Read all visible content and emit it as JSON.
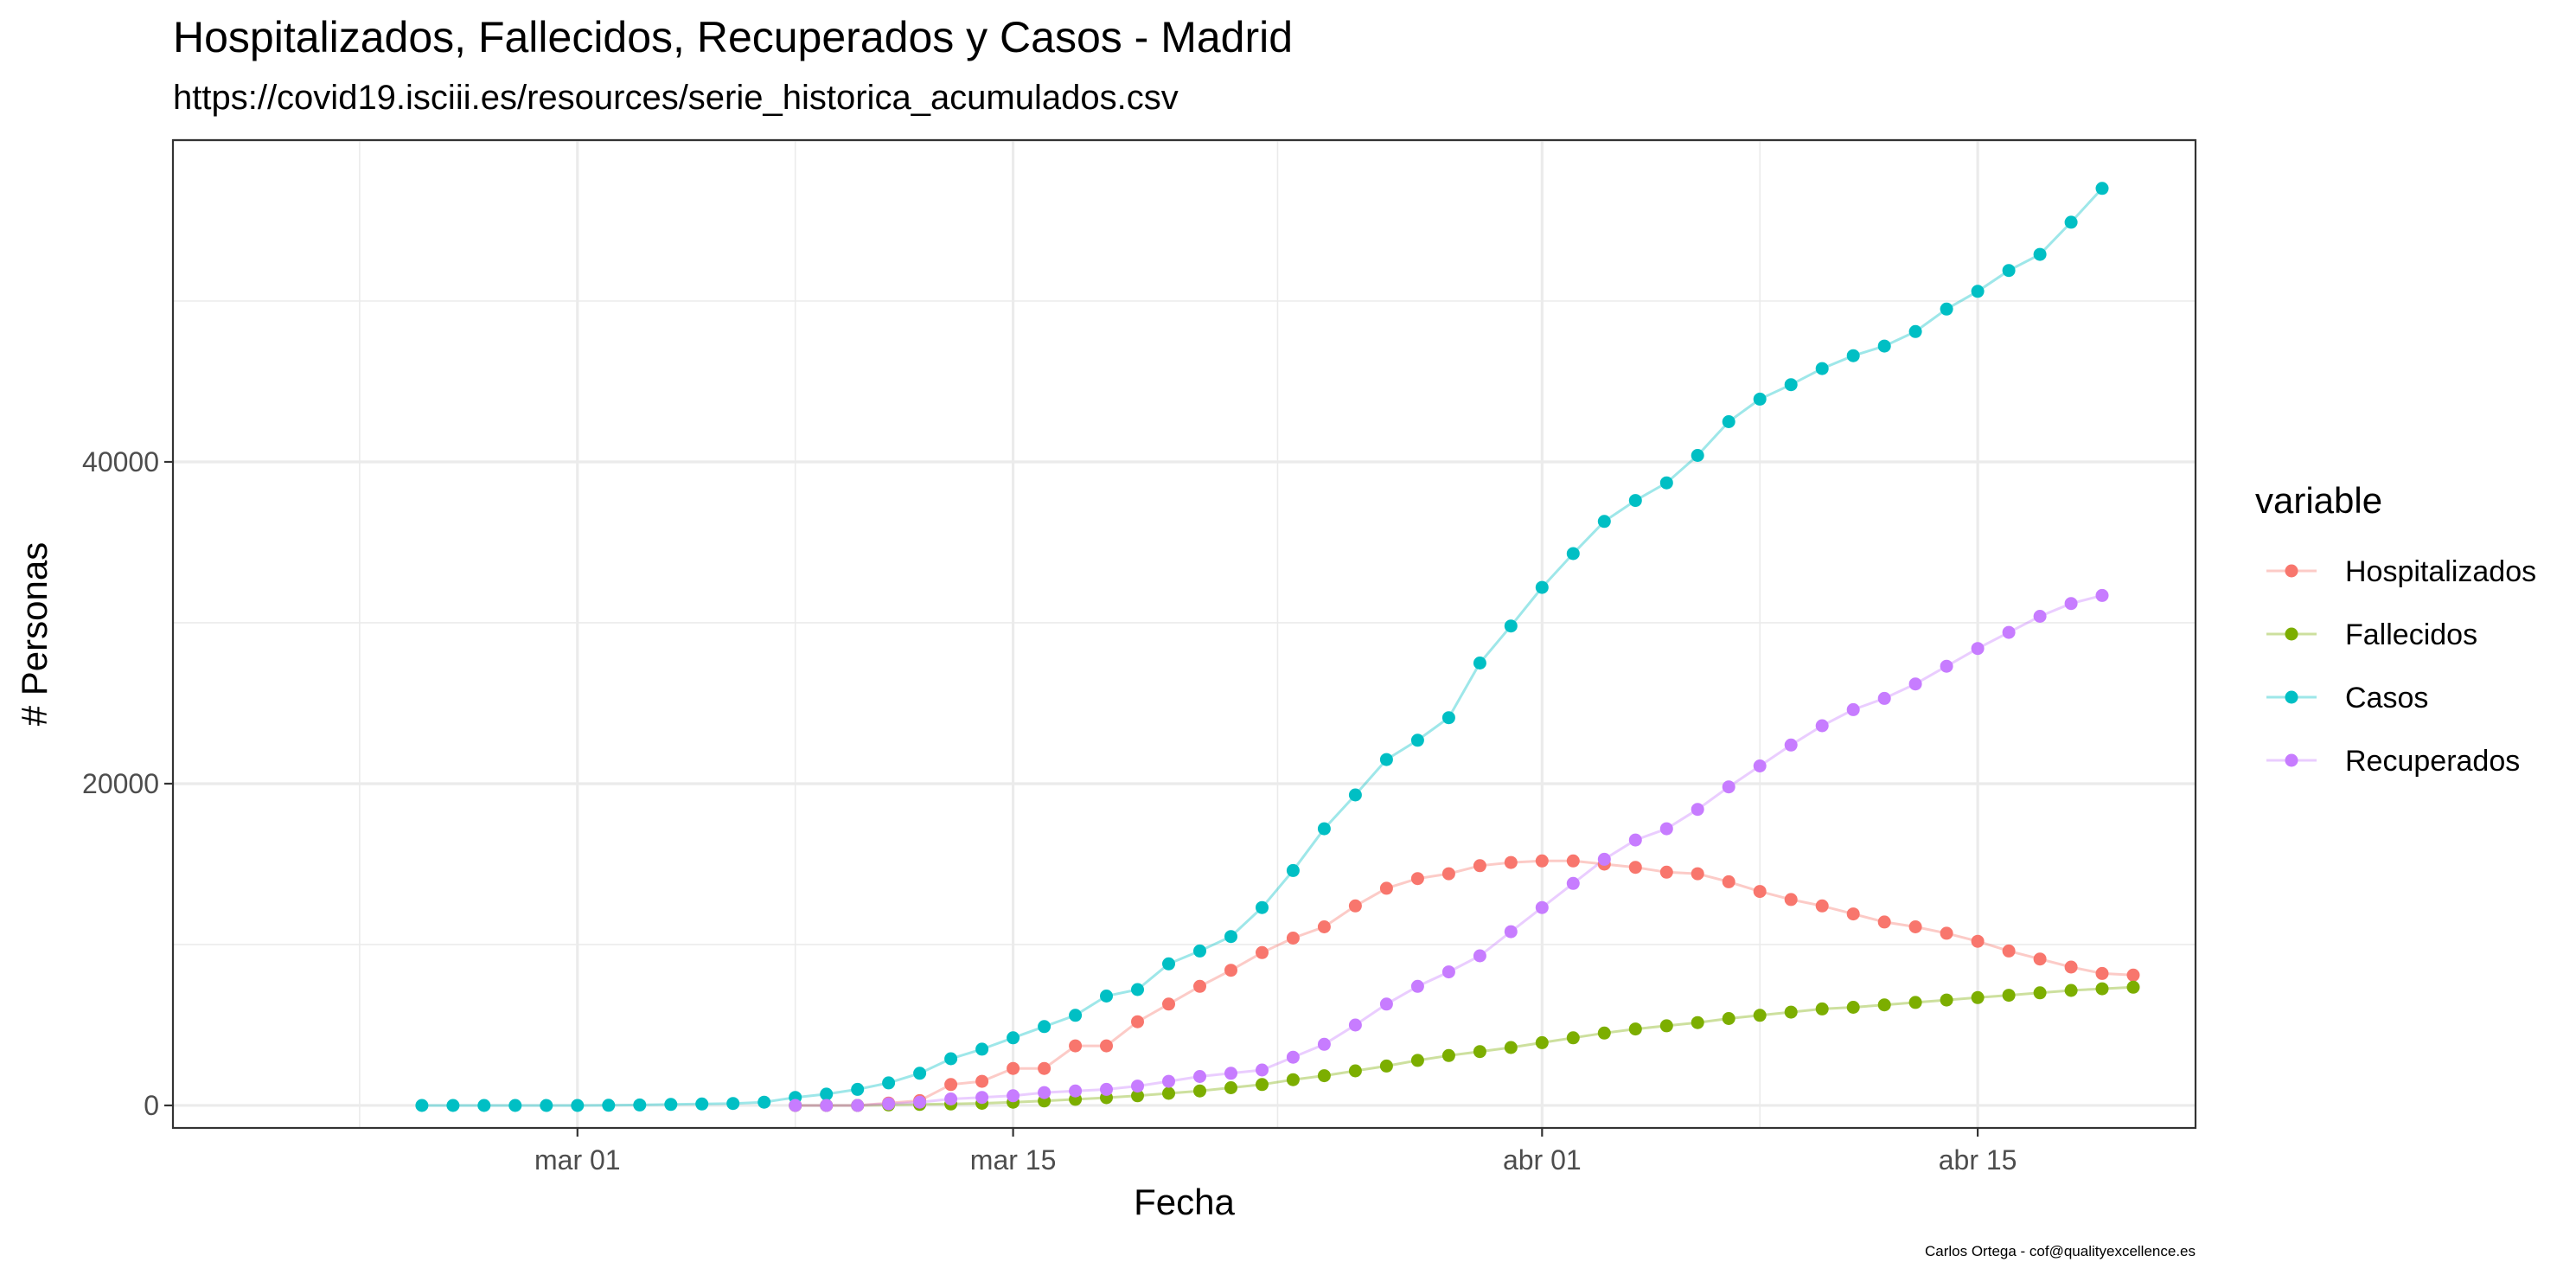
{
  "chart_data": {
    "type": "line",
    "title": "Hospitalizados, Fallecidos, Recuperados y Casos - Madrid",
    "subtitle": "https://covid19.isciii.es/resources/serie_historica_acumulados.csv",
    "xlabel": "Fecha",
    "ylabel": "# Personas",
    "caption": "Carlos Ortega - cof@qualityexcellence.es",
    "legend_title": "variable",
    "legend_position": "right",
    "grid": true,
    "x_type": "date",
    "xlim": [
      "2020-02-17",
      "2020-04-22"
    ],
    "ylim": [
      -1400,
      60000
    ],
    "x_ticks": [
      {
        "date": "2020-03-01",
        "label": "mar 01"
      },
      {
        "date": "2020-03-15",
        "label": "mar 15"
      },
      {
        "date": "2020-04-01",
        "label": "abr 01"
      },
      {
        "date": "2020-04-15",
        "label": "abr 15"
      }
    ],
    "y_ticks": [
      {
        "value": 0,
        "label": "0"
      },
      {
        "value": 20000,
        "label": "20000"
      },
      {
        "value": 40000,
        "label": "40000"
      }
    ],
    "series": [
      {
        "name": "Hospitalizados",
        "color": "#F8766D",
        "start": "2020-03-08",
        "values": [
          0,
          0,
          0,
          150,
          300,
          1300,
          1500,
          2300,
          2300,
          3700,
          3700,
          5200,
          6300,
          7400,
          8400,
          9500,
          10400,
          11100,
          12400,
          13500,
          14100,
          14400,
          14900,
          15100,
          15200,
          15200,
          15000,
          14800,
          14500,
          14400,
          13900,
          13300,
          12800,
          12400,
          11900,
          11400,
          11100,
          10700,
          10200,
          9600,
          9100,
          8600,
          8200,
          8100
        ]
      },
      {
        "name": "Fallecidos",
        "color": "#7CAE00",
        "start": "2020-03-08",
        "values": [
          0,
          0,
          0,
          30,
          60,
          90,
          130,
          200,
          280,
          380,
          480,
          600,
          750,
          900,
          1100,
          1300,
          1600,
          1850,
          2150,
          2450,
          2800,
          3100,
          3350,
          3600,
          3900,
          4200,
          4500,
          4750,
          4950,
          5150,
          5400,
          5600,
          5800,
          6000,
          6100,
          6250,
          6400,
          6550,
          6700,
          6850,
          7000,
          7150,
          7250,
          7350
        ]
      },
      {
        "name": "Casos",
        "color": "#00BFC4",
        "start": "2020-02-25",
        "values": [
          0,
          0,
          0,
          0,
          0,
          0,
          10,
          30,
          60,
          90,
          120,
          200,
          500,
          700,
          1000,
          1400,
          2000,
          2900,
          3500,
          4200,
          4900,
          5600,
          6800,
          7200,
          8800,
          9600,
          10500,
          12300,
          14600,
          17200,
          19300,
          21500,
          22700,
          24100,
          27500,
          29800,
          32200,
          34300,
          36300,
          37600,
          38700,
          40400,
          42500,
          43900,
          44800,
          45800,
          46600,
          47200,
          48100,
          49500,
          50600,
          51900,
          52900,
          54900,
          57000
        ]
      },
      {
        "name": "Recuperados",
        "color": "#C77CFF",
        "start": "2020-03-08",
        "values": [
          0,
          0,
          0,
          100,
          200,
          400,
          500,
          600,
          800,
          900,
          1000,
          1200,
          1500,
          1800,
          2000,
          2200,
          3000,
          3800,
          5000,
          6300,
          7400,
          8300,
          9300,
          10800,
          12300,
          13800,
          15300,
          16500,
          17200,
          18400,
          19800,
          21100,
          22400,
          23600,
          24600,
          25300,
          26200,
          27300,
          28400,
          29400,
          30400,
          31200,
          31700
        ]
      }
    ]
  }
}
